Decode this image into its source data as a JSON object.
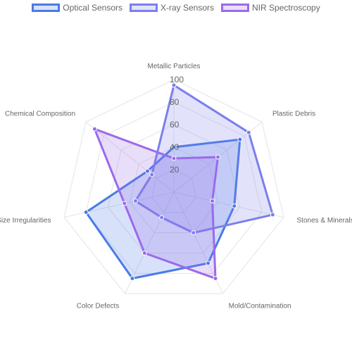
{
  "chart_data": {
    "type": "radar",
    "categories": [
      "Metallic Particles",
      "Plastic Debris",
      "Stones & Minerals",
      "Mold/Contamination",
      "Color Defects",
      "Size Irregularities",
      "Chemical Composition"
    ],
    "rlim": [
      0,
      100
    ],
    "ticks": [
      "20",
      "40",
      "60",
      "80",
      "100"
    ],
    "tick_values": [
      20,
      40,
      60,
      80,
      100
    ],
    "grid": true,
    "legend": "top",
    "series": [
      {
        "name": "Optical Sensors",
        "values": [
          40,
          75,
          55,
          70,
          85,
          80,
          30
        ],
        "stroke": "#4a7ae6",
        "fill": "rgba(74,122,230,0.22)"
      },
      {
        "name": "X-ray Sensors",
        "values": [
          95,
          85,
          90,
          40,
          25,
          35,
          25
        ],
        "stroke": "#7b7fec",
        "fill": "rgba(123,127,236,0.22)"
      },
      {
        "name": "NIR Spectroscopy",
        "values": [
          30,
          50,
          35,
          85,
          60,
          45,
          90
        ],
        "stroke": "#9b6aea",
        "fill": "rgba(155,106,234,0.22)"
      }
    ]
  }
}
